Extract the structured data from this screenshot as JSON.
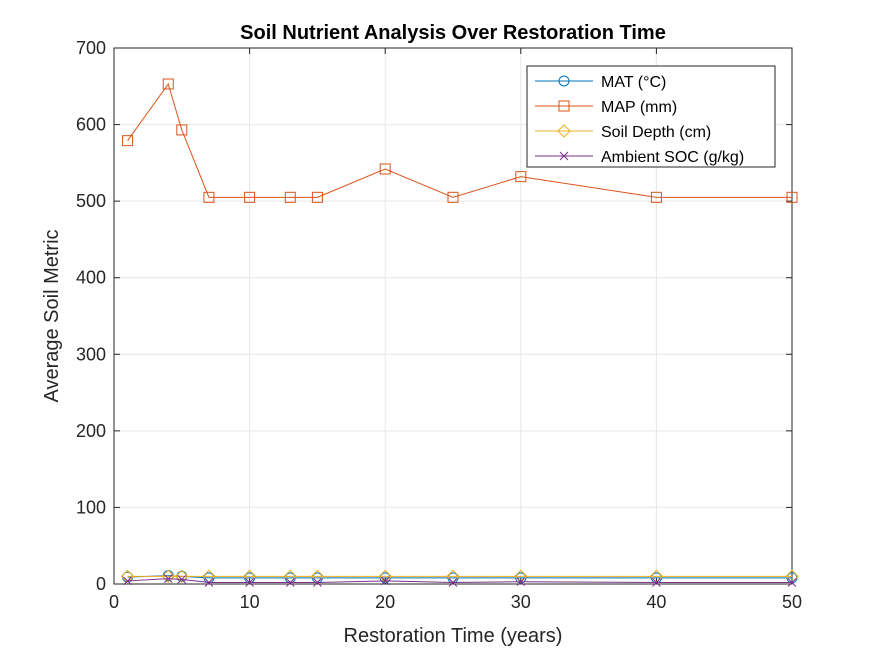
{
  "chart_data": {
    "type": "line",
    "title": "Soil Nutrient Analysis Over Restoration Time",
    "xlabel": "Restoration Time (years)",
    "ylabel": "Average Soil Metric",
    "xlim": [
      0,
      50
    ],
    "ylim": [
      0,
      700
    ],
    "xticks": [
      0,
      10,
      20,
      30,
      40,
      50
    ],
    "yticks": [
      0,
      100,
      200,
      300,
      400,
      500,
      600,
      700
    ],
    "grid": true,
    "legend_position": "top-right",
    "x": [
      1,
      4,
      5,
      7,
      10,
      13,
      15,
      20,
      25,
      30,
      40,
      50
    ],
    "series": [
      {
        "name": "MAT (°C)",
        "color": "#0072BD",
        "marker": "circle",
        "values": [
          9,
          11,
          10,
          8,
          8,
          8,
          8,
          8,
          8,
          8,
          8,
          8
        ]
      },
      {
        "name": "MAP (mm)",
        "color": "#D95319",
        "marker": "square",
        "values": [
          579,
          653,
          593,
          505,
          505,
          505,
          505,
          542,
          505,
          532,
          505,
          505
        ]
      },
      {
        "name": "Soil Depth (cm)",
        "color": "#EDB120",
        "marker": "diamond",
        "values": [
          10,
          10,
          10,
          10,
          10,
          10,
          10,
          10,
          10,
          10,
          10,
          10
        ]
      },
      {
        "name": "Ambient SOC (g/kg)",
        "color": "#7E2F8E",
        "marker": "x",
        "values": [
          4,
          7,
          6,
          2,
          2,
          2,
          2,
          4,
          2,
          3,
          2,
          2
        ]
      }
    ]
  }
}
